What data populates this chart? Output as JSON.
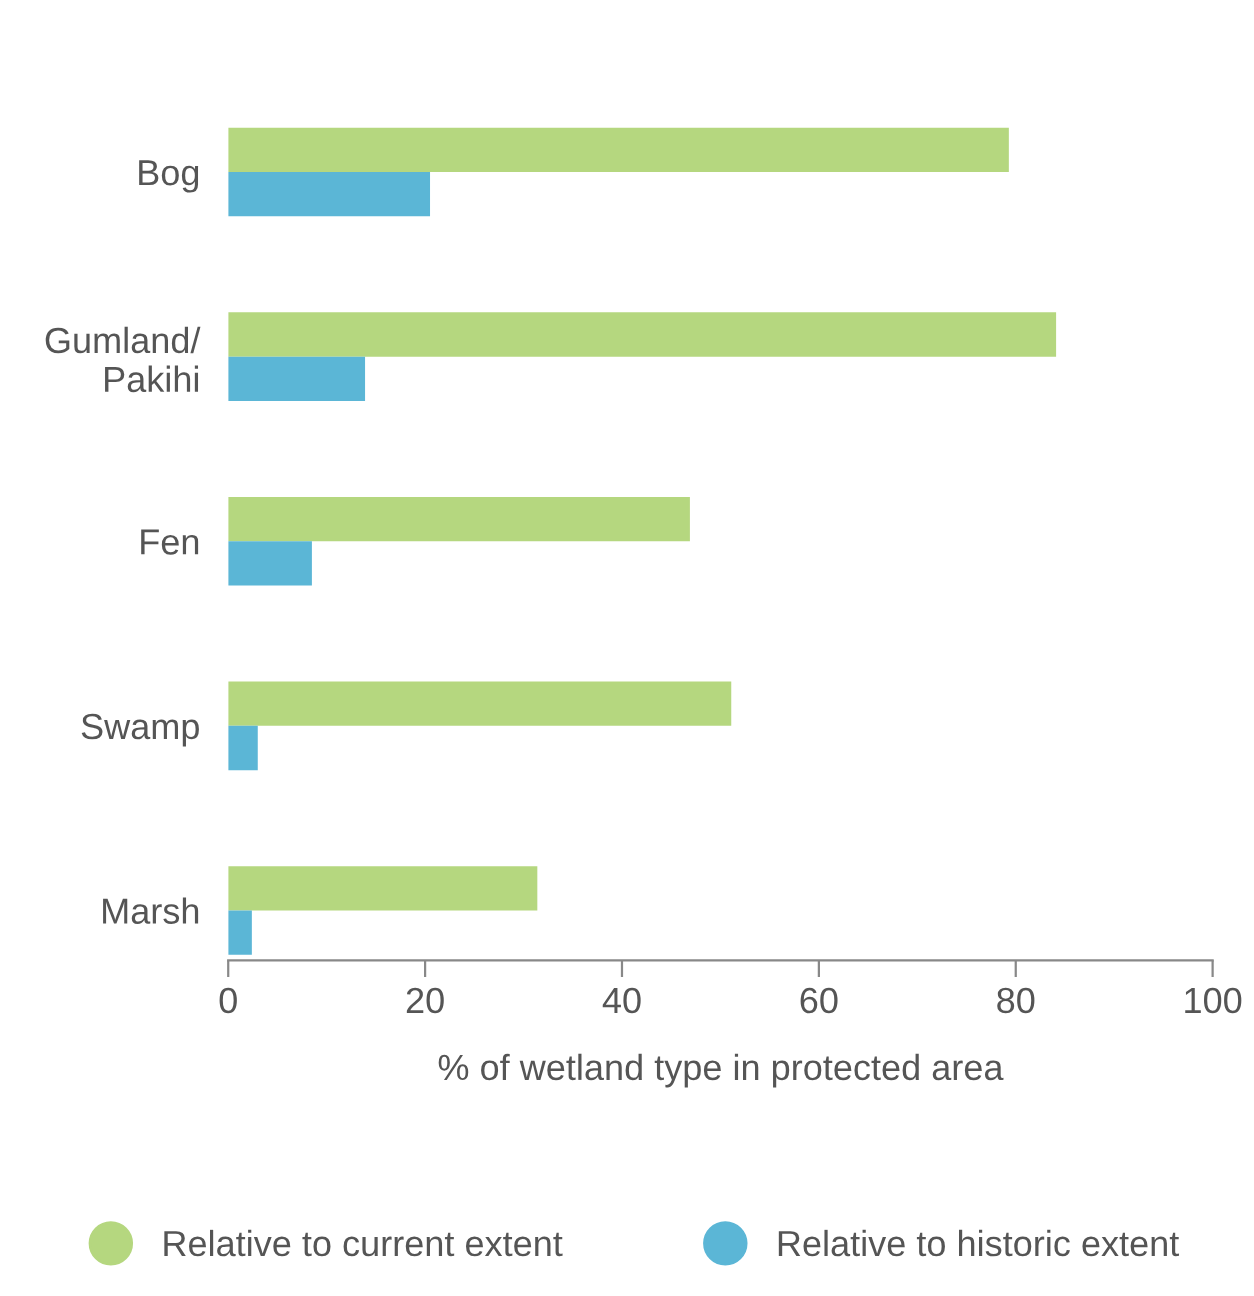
{
  "chart_data": {
    "type": "bar",
    "orientation": "horizontal",
    "xlabel": "% of wetland type in protected area",
    "categories": [
      "Bog",
      "Gumland/\nPakihi",
      "Fen",
      "Swamp",
      "Marsh"
    ],
    "series": [
      {
        "name": "Relative to current extent",
        "color": "#b5d77f",
        "values": [
          79.3,
          84.1,
          46.9,
          51.1,
          31.4
        ]
      },
      {
        "name": "Relative to historic extent",
        "color": "#5bb6d6",
        "values": [
          20.5,
          13.9,
          8.5,
          3.0,
          2.4
        ]
      }
    ],
    "xlim": [
      0,
      100
    ],
    "xticks": [
      0,
      20,
      40,
      60,
      80,
      100
    ],
    "grid": false,
    "legend": "bottom",
    "marker": "circle"
  }
}
